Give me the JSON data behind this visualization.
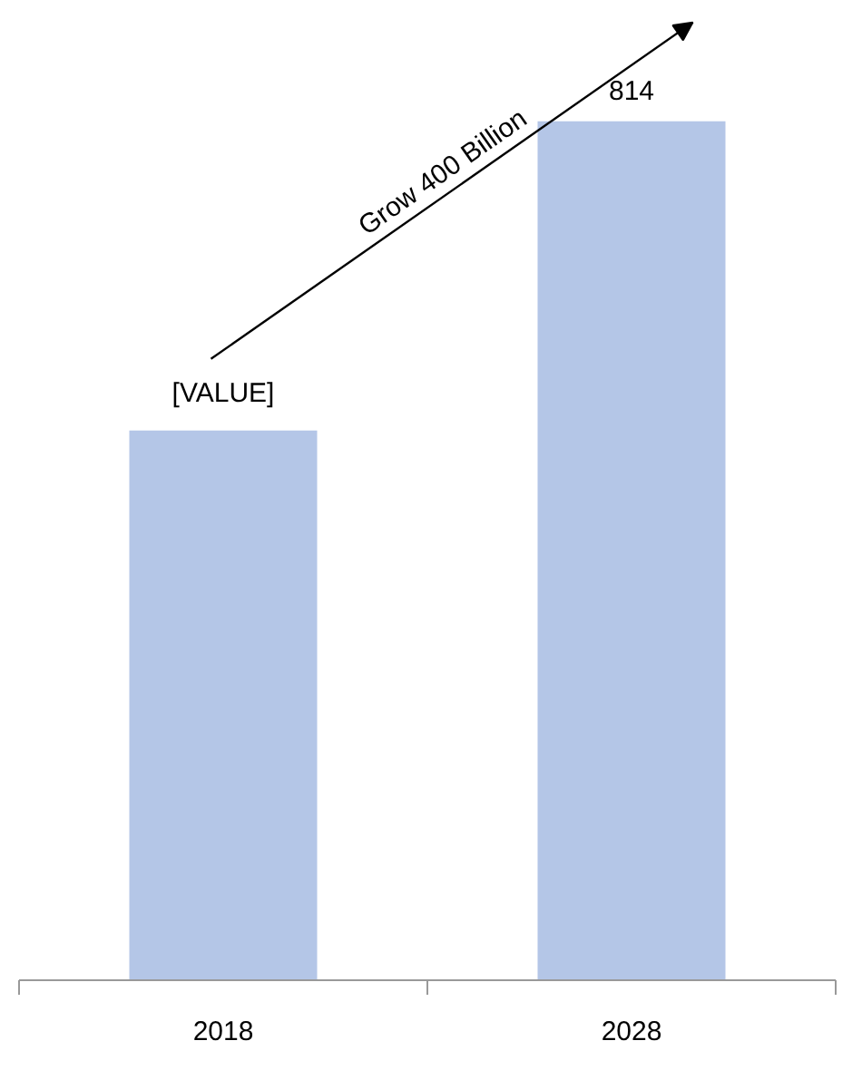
{
  "chart_data": {
    "type": "bar",
    "categories": [
      "2018",
      "2028"
    ],
    "values": [
      521,
      814
    ],
    "color": "#b4c6e7",
    "value_labels": [
      "[VALUE]",
      "814"
    ],
    "annotations": [
      "Grow 400 Billion"
    ]
  }
}
